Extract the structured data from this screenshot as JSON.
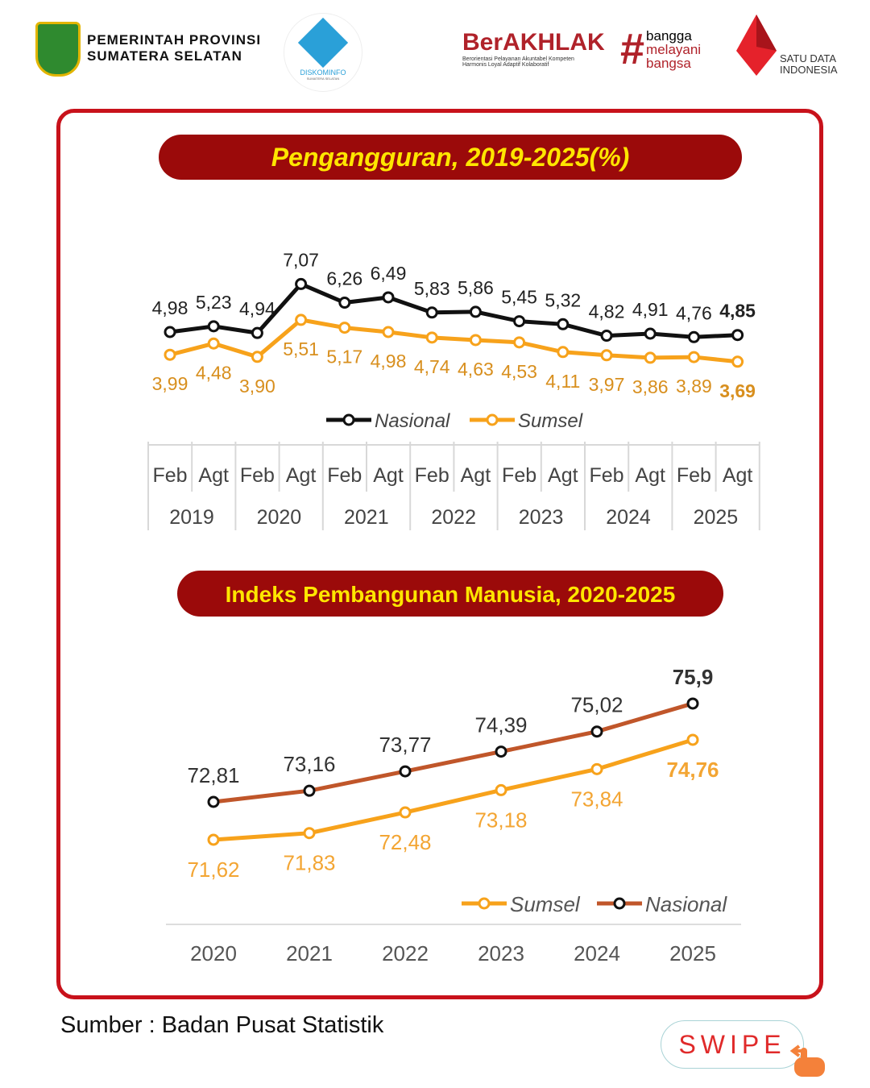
{
  "header": {
    "province_line1": "PEMERINTAH PROVINSI",
    "province_line2": "SUMATERA SELATAN",
    "diskominfo": "DISKOMINFO",
    "diskominfo_sub": "SUMATERA SELATAN",
    "berakhlak": "BerAKHLAK",
    "berakhlak_sub1": "Berorientasi Pelayanan Akuntabel Kompeten",
    "berakhlak_sub2": "Harmonis Loyal Adaptif Kolaboratif",
    "bangga": [
      "bangga",
      "melayani",
      "bangsa"
    ],
    "satu_data": [
      "SATU DATA",
      "INDONESIA"
    ]
  },
  "colors": {
    "nasional": "#111111",
    "sumsel": "#f7a21b",
    "nasional_ipm": "#c0562a",
    "banner": "#9b0a0a",
    "banner_text": "#ffe600",
    "frame": "#c8121b"
  },
  "chart_data": [
    {
      "type": "line",
      "title": "Pengangguran, 2019-2025(%)",
      "categories": [
        "Feb",
        "Agt",
        "Feb",
        "Agt",
        "Feb",
        "Agt",
        "Feb",
        "Agt",
        "Feb",
        "Agt",
        "Feb",
        "Agt",
        "Feb",
        "Agt"
      ],
      "years": [
        "2019",
        "2020",
        "2021",
        "2022",
        "2023",
        "2024",
        "2025"
      ],
      "series": [
        {
          "name": "Nasional",
          "values": [
            4.98,
            5.23,
            4.94,
            7.07,
            6.26,
            6.49,
            5.83,
            5.86,
            5.45,
            5.32,
            4.82,
            4.91,
            4.76,
            4.85
          ],
          "labels": [
            "4,98",
            "5,23",
            "4,94",
            "7,07",
            "6,26",
            "6,49",
            "5,83",
            "5,86",
            "5,45",
            "5,32",
            "4,82",
            "4,91",
            "4,76",
            "4,85"
          ]
        },
        {
          "name": "Sumsel",
          "values": [
            3.99,
            4.48,
            3.9,
            5.51,
            5.17,
            4.98,
            4.74,
            4.63,
            4.53,
            4.11,
            3.97,
            3.86,
            3.89,
            3.69
          ],
          "labels": [
            "3,99",
            "4,48",
            "3,90",
            "5,51",
            "5,17",
            "4,98",
            "4,74",
            "4,63",
            "4,53",
            "4,11",
            "3,97",
            "3,86",
            "3,89",
            "3,69"
          ]
        }
      ],
      "legend": "bottom"
    },
    {
      "type": "line",
      "title": "Indeks Pembangunan Manusia, 2020-2025",
      "categories": [
        "2020",
        "2021",
        "2022",
        "2023",
        "2024",
        "2025"
      ],
      "series": [
        {
          "name": "Sumsel",
          "values": [
            71.62,
            71.83,
            72.48,
            73.18,
            73.84,
            74.76
          ],
          "labels": [
            "71,62",
            "71,83",
            "72,48",
            "73,18",
            "73,84",
            "74,76"
          ]
        },
        {
          "name": "Nasional",
          "values": [
            72.81,
            73.16,
            73.77,
            74.39,
            75.02,
            75.9
          ],
          "labels": [
            "72,81",
            "73,16",
            "73,77",
            "74,39",
            "75,02",
            "75,9"
          ]
        }
      ],
      "legend": "bottom-right"
    }
  ],
  "footer": {
    "source": "Sumber : Badan Pusat Statistik",
    "swipe": "SWIPE"
  }
}
